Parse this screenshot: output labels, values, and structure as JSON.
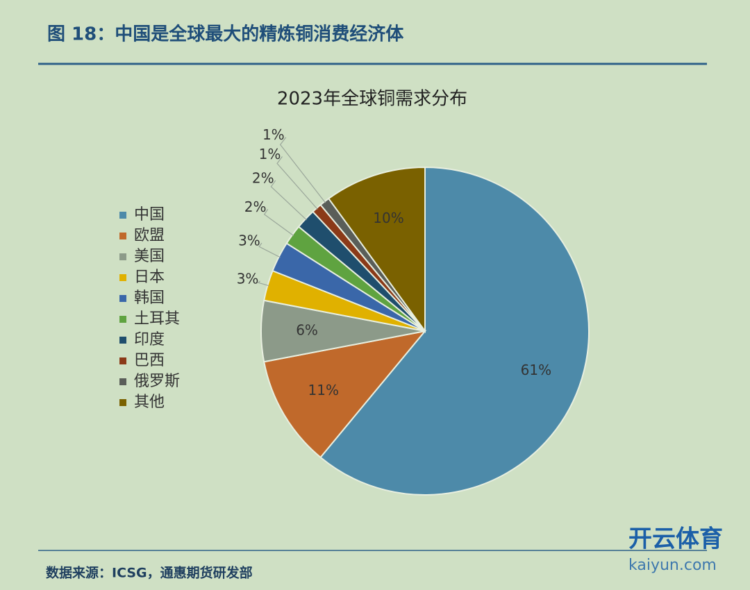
{
  "header": {
    "title": "图 18：中国是全球最大的精炼铜消费经济体"
  },
  "chart_data": {
    "type": "pie",
    "title": "2023年全球铜需求分布",
    "categories": [
      "中国",
      "欧盟",
      "美国",
      "日本",
      "韩国",
      "土耳其",
      "印度",
      "巴西",
      "俄罗斯",
      "其他"
    ],
    "values": [
      61,
      11,
      6,
      3,
      3,
      2,
      2,
      1,
      1,
      10
    ],
    "value_labels": [
      "61%",
      "11%",
      "6%",
      "3%",
      "3%",
      "2%",
      "2%",
      "1%",
      "1%",
      "10%"
    ],
    "colors": [
      "#4d8aa9",
      "#c0692b",
      "#8c9a89",
      "#e0b100",
      "#3a67a9",
      "#5fa340",
      "#1f4e6d",
      "#8b3a18",
      "#5a5e59",
      "#7a6100"
    ],
    "legend": "left"
  },
  "footer": {
    "source": "数据来源：ICSG，通惠期货研发部"
  },
  "watermark": {
    "brand": "开云体育",
    "site": "kaiyun.com"
  }
}
